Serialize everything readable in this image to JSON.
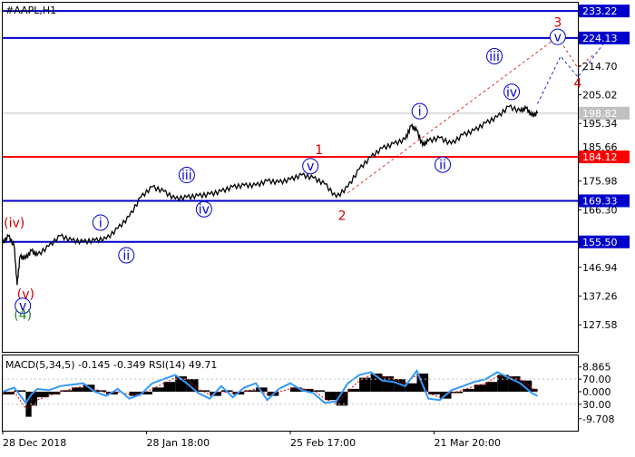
{
  "chart_data": {
    "type": "line",
    "title": "#AAPL,H1",
    "price_axis": {
      "ylim": [
        118.5,
        236.0
      ],
      "ticks": [
        233.22,
        214.7,
        205.02,
        195.34,
        175.98,
        166.3,
        146.94,
        137.26,
        127.58
      ]
    },
    "x_axis": {
      "labels": [
        "28 Dec 2018",
        "28 Jan 18:00",
        "25 Feb 17:00",
        "21 Mar 20:00"
      ],
      "label_x": [
        0.0,
        0.25,
        0.5,
        0.75
      ]
    },
    "levels": [
      {
        "value": 233.22,
        "color": "#0000cc"
      },
      {
        "value": 224.13,
        "color": "#0000cc"
      },
      {
        "value": 184.12,
        "color": "#ff0000"
      },
      {
        "value": 169.33,
        "color": "#0000cc"
      },
      {
        "value": 155.5,
        "color": "#0000cc"
      }
    ],
    "current_price": {
      "value": 198.82,
      "color": "#c0c0c0"
    },
    "hidden_tick": "185.66",
    "price_series": {
      "x": [
        0.0,
        0.01,
        0.02,
        0.025,
        0.03,
        0.04,
        0.05,
        0.06,
        0.08,
        0.1,
        0.12,
        0.14,
        0.16,
        0.18,
        0.2,
        0.22,
        0.24,
        0.26,
        0.28,
        0.3,
        0.32,
        0.34,
        0.36,
        0.38,
        0.4,
        0.42,
        0.44,
        0.46,
        0.48,
        0.5,
        0.52,
        0.54,
        0.56,
        0.58,
        0.6,
        0.62,
        0.64,
        0.66,
        0.68,
        0.7,
        0.71,
        0.72,
        0.73,
        0.74,
        0.76,
        0.78,
        0.8,
        0.82,
        0.84,
        0.86,
        0.88,
        0.9,
        0.91,
        0.92,
        0.93
      ],
      "y": [
        155.0,
        157.5,
        154.0,
        141.0,
        150.5,
        150.0,
        152.5,
        151.0,
        154.0,
        157.5,
        156.0,
        155.5,
        156.0,
        156.5,
        160.0,
        164.0,
        170.5,
        174.0,
        172.5,
        170.0,
        170.5,
        171.0,
        171.5,
        172.5,
        174.0,
        174.5,
        174.5,
        176.0,
        175.5,
        176.5,
        178.0,
        177.0,
        175.0,
        170.5,
        174.0,
        180.0,
        184.0,
        187.0,
        188.5,
        190.0,
        194.5,
        193.0,
        188.0,
        189.5,
        190.5,
        188.5,
        191.5,
        193.0,
        195.5,
        197.5,
        201.0,
        199.5,
        200.5,
        198.0,
        198.82
      ]
    },
    "wave_labels": [
      {
        "text": "(iv)",
        "x": 0.02,
        "y": 162.0,
        "color": "#cc0000",
        "circle": false
      },
      {
        "text": "(v)",
        "x": 0.04,
        "y": 138.0,
        "color": "#cc0000",
        "circle": false
      },
      {
        "text": "v",
        "x": 0.035,
        "y": 134.0,
        "color": "#0000cc",
        "circle": true
      },
      {
        "text": "(4)",
        "x": 0.035,
        "y": 131.0,
        "color": "#228822",
        "circle": false
      },
      {
        "text": "i",
        "x": 0.17,
        "y": 162.0,
        "color": "#0000cc",
        "circle": true
      },
      {
        "text": "ii",
        "x": 0.215,
        "y": 151.0,
        "color": "#0000cc",
        "circle": true
      },
      {
        "text": "iii",
        "x": 0.32,
        "y": 178.0,
        "color": "#0000cc",
        "circle": true
      },
      {
        "text": "iv",
        "x": 0.35,
        "y": 166.5,
        "color": "#0000cc",
        "circle": true
      },
      {
        "text": "1",
        "x": 0.55,
        "y": 186.5,
        "color": "#cc0000",
        "circle": false
      },
      {
        "text": "v",
        "x": 0.535,
        "y": 181.0,
        "color": "#0000cc",
        "circle": true
      },
      {
        "text": "2",
        "x": 0.59,
        "y": 164.5,
        "color": "#cc0000",
        "circle": false
      },
      {
        "text": "i",
        "x": 0.725,
        "y": 199.5,
        "color": "#0000cc",
        "circle": true
      },
      {
        "text": "ii",
        "x": 0.765,
        "y": 181.5,
        "color": "#0000cc",
        "circle": true
      },
      {
        "text": "iii",
        "x": 0.855,
        "y": 218.0,
        "color": "#0000cc",
        "circle": true
      },
      {
        "text": "iv",
        "x": 0.885,
        "y": 206.0,
        "color": "#0000cc",
        "circle": true
      },
      {
        "text": "3",
        "x": 0.965,
        "y": 229.5,
        "color": "#cc0000",
        "circle": false
      },
      {
        "text": "v",
        "x": 0.965,
        "y": 224.5,
        "color": "#0000cc",
        "circle": true
      },
      {
        "text": "4",
        "x": 1.0,
        "y": 209.0,
        "color": "#cc0000",
        "circle": false
      }
    ],
    "forecast_red": {
      "x": [
        0.6,
        0.965,
        1.0,
        1.03
      ],
      "y": [
        172.0,
        224.5,
        214.0,
        219.0
      ]
    },
    "forecast_blue": {
      "x": [
        0.93,
        0.97,
        1.0,
        1.06
      ],
      "y": [
        202.0,
        218.0,
        211.0,
        226.0
      ]
    },
    "indicator": {
      "label": "MACD(5,34,5) -0.145 -0.349 RSI(14) 49.71",
      "ylim": [
        -14.0,
        13.0
      ],
      "ticks": [
        "8.865",
        "70.00",
        "0.000",
        "30.00",
        "-9.708"
      ],
      "tick_values": [
        8.865,
        4.5,
        0.0,
        -4.5,
        -9.708
      ],
      "histogram": {
        "x": [
          0.0,
          0.02,
          0.04,
          0.05,
          0.06,
          0.08,
          0.1,
          0.12,
          0.14,
          0.16,
          0.18,
          0.2,
          0.22,
          0.24,
          0.26,
          0.28,
          0.3,
          0.32,
          0.34,
          0.36,
          0.38,
          0.4,
          0.42,
          0.44,
          0.46,
          0.48,
          0.5,
          0.52,
          0.54,
          0.56,
          0.58,
          0.6,
          0.62,
          0.64,
          0.66,
          0.68,
          0.7,
          0.72,
          0.74,
          0.76,
          0.78,
          0.8,
          0.82,
          0.84,
          0.86,
          0.88,
          0.9,
          0.92,
          0.93
        ],
        "values": [
          -1.0,
          0.5,
          -9.0,
          -5.0,
          -2.0,
          -1.0,
          0.5,
          1.5,
          2.5,
          0.5,
          -1.0,
          0.0,
          -1.5,
          -1.0,
          1.5,
          3.5,
          5.5,
          4.5,
          0.5,
          -1.5,
          0.5,
          -1.0,
          0.5,
          1.5,
          -1.5,
          0.0,
          1.5,
          1.0,
          0.5,
          -3.0,
          -5.0,
          1.0,
          5.0,
          6.5,
          5.5,
          4.5,
          3.0,
          6.5,
          -1.0,
          -2.5,
          -0.5,
          1.0,
          2.5,
          3.5,
          6.0,
          5.5,
          4.0,
          1.0,
          -0.5
        ]
      },
      "signal": {
        "x": [
          0.0,
          0.02,
          0.04,
          0.05,
          0.06,
          0.08,
          0.1,
          0.12,
          0.14,
          0.16,
          0.18,
          0.2,
          0.22,
          0.24,
          0.26,
          0.28,
          0.3,
          0.32,
          0.34,
          0.36,
          0.38,
          0.4,
          0.42,
          0.44,
          0.46,
          0.48,
          0.5,
          0.52,
          0.54,
          0.56,
          0.58,
          0.6,
          0.62,
          0.64,
          0.66,
          0.68,
          0.7,
          0.72,
          0.74,
          0.76,
          0.78,
          0.8,
          0.82,
          0.84,
          0.86,
          0.88,
          0.9,
          0.92,
          0.93
        ],
        "values": [
          -0.5,
          0.0,
          -6.0,
          -5.5,
          -3.0,
          -1.5,
          0.0,
          1.0,
          2.0,
          1.0,
          -0.5,
          0.0,
          -1.0,
          -1.0,
          1.0,
          3.0,
          5.0,
          4.5,
          1.0,
          -1.0,
          0.0,
          -0.5,
          0.0,
          1.0,
          -1.0,
          0.0,
          1.0,
          1.0,
          0.5,
          -2.5,
          -4.5,
          0.0,
          4.0,
          6.0,
          5.5,
          4.5,
          3.0,
          6.0,
          -0.5,
          -2.0,
          -0.5,
          0.5,
          2.0,
          3.0,
          5.5,
          5.5,
          4.5,
          1.5,
          -0.3
        ]
      },
      "rsi": {
        "x": [
          0.0,
          0.02,
          0.04,
          0.05,
          0.06,
          0.08,
          0.1,
          0.12,
          0.14,
          0.16,
          0.18,
          0.2,
          0.22,
          0.24,
          0.26,
          0.28,
          0.3,
          0.32,
          0.34,
          0.36,
          0.38,
          0.4,
          0.42,
          0.44,
          0.46,
          0.48,
          0.5,
          0.52,
          0.54,
          0.56,
          0.58,
          0.6,
          0.62,
          0.64,
          0.66,
          0.68,
          0.7,
          0.72,
          0.74,
          0.76,
          0.78,
          0.8,
          0.82,
          0.84,
          0.86,
          0.88,
          0.9,
          0.92,
          0.93
        ],
        "values": [
          0.0,
          1.5,
          -4.0,
          -1.0,
          1.0,
          0.5,
          2.0,
          2.5,
          3.0,
          0.0,
          -1.5,
          1.0,
          -2.5,
          -1.0,
          3.0,
          4.5,
          6.0,
          3.0,
          -0.5,
          -2.5,
          2.0,
          -2.0,
          1.5,
          3.0,
          -3.0,
          1.0,
          3.0,
          0.5,
          -0.5,
          -4.0,
          -3.5,
          3.0,
          6.0,
          7.0,
          4.0,
          3.5,
          2.0,
          7.5,
          -2.5,
          -3.0,
          0.5,
          2.0,
          3.5,
          4.5,
          7.0,
          5.0,
          3.0,
          -0.5,
          -1.5
        ]
      }
    }
  }
}
